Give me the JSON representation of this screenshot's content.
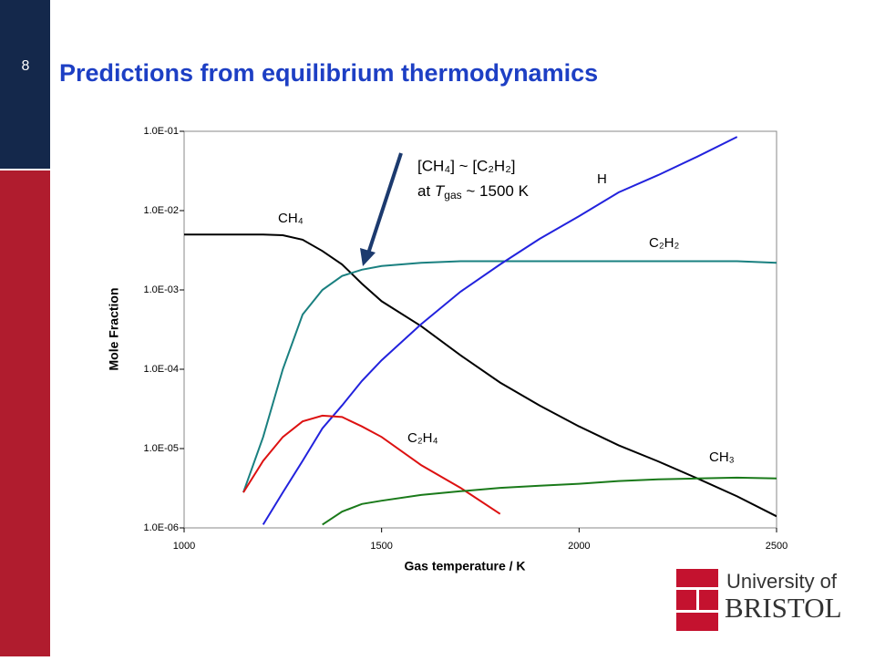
{
  "page_number": "8",
  "logo": {
    "line1": "University of",
    "line2": "BRISTOL"
  },
  "chart_data": {
    "type": "line",
    "title": "Predictions from equilibrium thermodynamics",
    "x_label": "Gas temperature / K",
    "y_label": "Mole Fraction",
    "yscale": "log",
    "x": [
      1000,
      1100,
      1150,
      1200,
      1250,
      1300,
      1350,
      1400,
      1450,
      1500,
      1600,
      1700,
      1800,
      1900,
      2000,
      2100,
      2200,
      2300,
      2400,
      2500
    ],
    "series": [
      {
        "name": "CH₄",
        "color": "#000000",
        "values": [
          0.005,
          0.005,
          0.005,
          0.005,
          0.0049,
          0.0043,
          0.0031,
          0.0021,
          0.0012,
          0.00072,
          0.00035,
          0.00015,
          6.8e-05,
          3.5e-05,
          1.9e-05,
          1.1e-05,
          6.9e-06,
          4.2e-06,
          2.5e-06,
          1.4e-06
        ]
      },
      {
        "name": "C₂H₂",
        "color": "#1a8080",
        "values": [
          null,
          null,
          2.8e-06,
          1.4e-05,
          0.0001,
          0.00049,
          0.001,
          0.0015,
          0.0018,
          0.002,
          0.0022,
          0.0023,
          0.0023,
          0.0023,
          0.0023,
          0.0023,
          0.0023,
          0.0023,
          0.0023,
          0.0022
        ]
      },
      {
        "name": "H",
        "color": "#2222dd",
        "values": [
          null,
          null,
          null,
          1.1e-06,
          2.8e-06,
          7e-06,
          1.8e-05,
          3.5e-05,
          7.1e-05,
          0.00013,
          0.00037,
          0.00095,
          0.0021,
          0.0044,
          0.0085,
          0.017,
          0.028,
          0.048,
          0.085,
          null
        ]
      },
      {
        "name": "C₂H₄",
        "color": "#dd1111",
        "values": [
          null,
          null,
          2.8e-06,
          7e-06,
          1.4e-05,
          2.2e-05,
          2.6e-05,
          2.5e-05,
          1.9e-05,
          1.4e-05,
          6.2e-06,
          3.2e-06,
          1.5e-06,
          null,
          null,
          null,
          null,
          null,
          null,
          null
        ]
      },
      {
        "name": "CH₃",
        "color": "#1a7a1a",
        "values": [
          null,
          null,
          null,
          null,
          null,
          null,
          1.1e-06,
          1.6e-06,
          2e-06,
          2.2e-06,
          2.6e-06,
          2.9e-06,
          3.2e-06,
          3.4e-06,
          3.6e-06,
          3.9e-06,
          4.1e-06,
          4.2e-06,
          4.3e-06,
          4.2e-06
        ]
      }
    ],
    "xlim": [
      1000,
      2500
    ],
    "xticks": [
      1000,
      1500,
      2000,
      2500
    ],
    "ylim": [
      1e-06,
      0.1
    ],
    "yticks": [
      {
        "value": 1e-06,
        "label": "1.0E-06"
      },
      {
        "value": 1e-05,
        "label": "1.0E-05"
      },
      {
        "value": 0.0001,
        "label": "1.0E-04"
      },
      {
        "value": 0.001,
        "label": "1.0E-03"
      },
      {
        "value": 0.01,
        "label": "1.0E-02"
      },
      {
        "value": 0.1,
        "label": "1.0E-01"
      }
    ],
    "annotation": {
      "line1": "[CH₄] ~ [C₂H₂]",
      "line2": [
        "at ",
        "T",
        "gas",
        " ~ 1500 K"
      ]
    }
  }
}
